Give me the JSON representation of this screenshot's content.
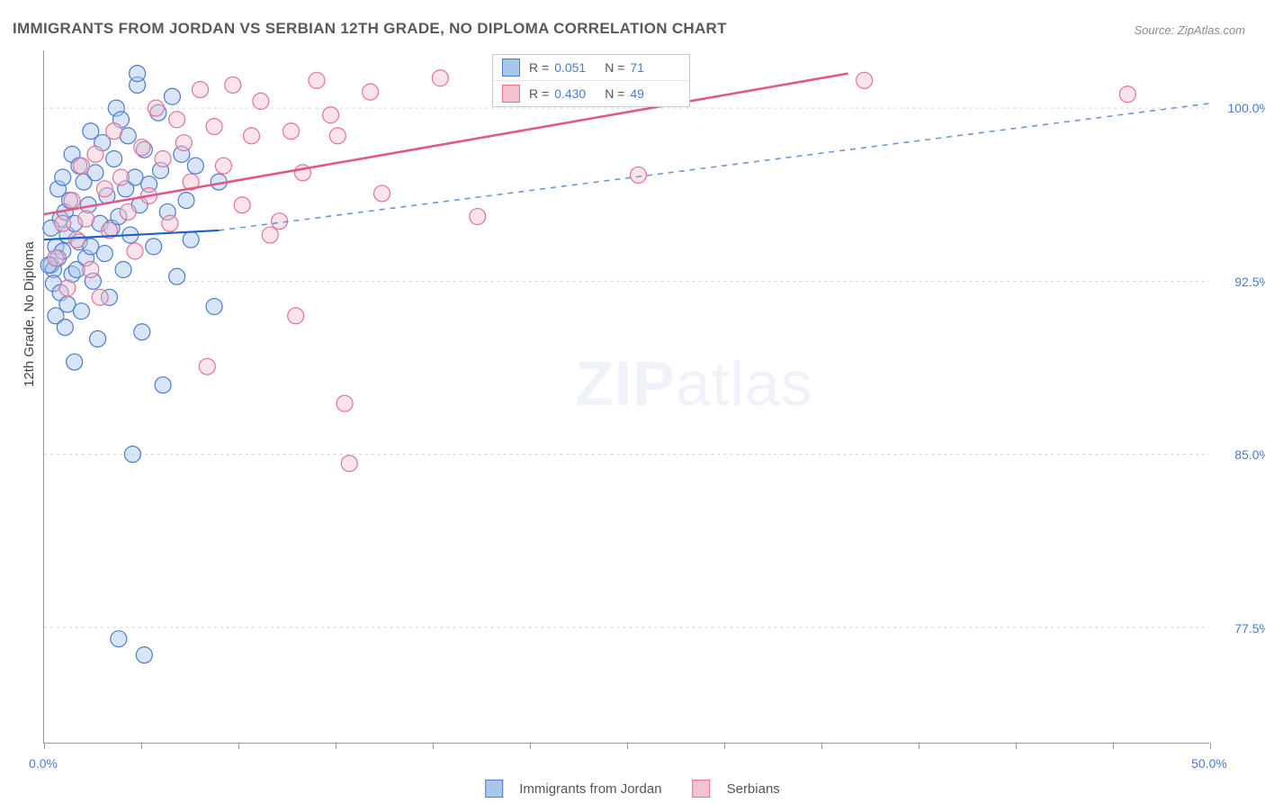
{
  "title": "IMMIGRANTS FROM JORDAN VS SERBIAN 12TH GRADE, NO DIPLOMA CORRELATION CHART",
  "source": "Source: ZipAtlas.com",
  "ylabel": "12th Grade, No Diploma",
  "watermark_bold": "ZIP",
  "watermark_rest": "atlas",
  "chart": {
    "type": "scatter",
    "background_color": "#ffffff",
    "grid_color": "#d0d0d0",
    "axis_color": "#999999",
    "tick_label_color": "#4a7bd0",
    "label_fontsize": 15,
    "tick_fontsize": 14,
    "title_fontsize": 17,
    "title_color": "#5a5a5a",
    "xlim": [
      0,
      50
    ],
    "ylim": [
      72.5,
      102.5
    ],
    "xticks": [
      0,
      4.17,
      8.33,
      12.5,
      16.67,
      20.83,
      25.0,
      29.17,
      33.33,
      37.5,
      41.67,
      45.83,
      50.0
    ],
    "xtick_labels": {
      "0": "0.0%",
      "50": "50.0%"
    },
    "yticks": [
      77.5,
      85.0,
      92.5,
      100.0
    ],
    "ytick_labels": [
      "77.5%",
      "85.0%",
      "92.5%",
      "100.0%"
    ],
    "marker_radius": 9,
    "marker_opacity": 0.45,
    "series": [
      {
        "name": "Immigrants from Jordan",
        "color_fill": "#a9c6ee",
        "color_stroke": "#4a7bd0",
        "R": "0.051",
        "N": "71",
        "trend": {
          "x1": 0,
          "y1": 94.3,
          "x2": 7.5,
          "y2": 94.7,
          "x2_ext": 50,
          "y2_ext": 100.2,
          "solid_color": "#1f5fc4",
          "dash_color": "#6b96dd",
          "line_width": 2.2
        },
        "points": [
          [
            0.3,
            93.2
          ],
          [
            0.4,
            93.0
          ],
          [
            0.4,
            92.4
          ],
          [
            0.5,
            94.0
          ],
          [
            0.5,
            91.0
          ],
          [
            0.6,
            96.5
          ],
          [
            0.6,
            93.5
          ],
          [
            0.7,
            95.2
          ],
          [
            0.7,
            92.0
          ],
          [
            0.8,
            97.0
          ],
          [
            0.8,
            93.8
          ],
          [
            0.9,
            95.5
          ],
          [
            0.9,
            90.5
          ],
          [
            1.0,
            94.5
          ],
          [
            1.0,
            91.5
          ],
          [
            1.1,
            96.0
          ],
          [
            1.2,
            92.8
          ],
          [
            1.2,
            98.0
          ],
          [
            1.3,
            95.0
          ],
          [
            1.3,
            89.0
          ],
          [
            1.4,
            93.0
          ],
          [
            1.5,
            97.5
          ],
          [
            1.5,
            94.2
          ],
          [
            1.6,
            91.2
          ],
          [
            1.7,
            96.8
          ],
          [
            1.8,
            93.5
          ],
          [
            1.9,
            95.8
          ],
          [
            2.0,
            94.0
          ],
          [
            2.0,
            99.0
          ],
          [
            2.1,
            92.5
          ],
          [
            2.2,
            97.2
          ],
          [
            2.3,
            90.0
          ],
          [
            2.4,
            95.0
          ],
          [
            2.5,
            98.5
          ],
          [
            2.6,
            93.7
          ],
          [
            2.7,
            96.2
          ],
          [
            2.8,
            91.8
          ],
          [
            2.9,
            94.8
          ],
          [
            3.0,
            97.8
          ],
          [
            3.1,
            100.0
          ],
          [
            3.2,
            95.3
          ],
          [
            3.3,
            99.5
          ],
          [
            3.4,
            93.0
          ],
          [
            3.5,
            96.5
          ],
          [
            3.6,
            98.8
          ],
          [
            3.7,
            94.5
          ],
          [
            3.8,
            85.0
          ],
          [
            3.9,
            97.0
          ],
          [
            4.0,
            101.0
          ],
          [
            4.1,
            95.8
          ],
          [
            4.2,
            90.3
          ],
          [
            4.3,
            98.2
          ],
          [
            4.5,
            96.7
          ],
          [
            4.7,
            94.0
          ],
          [
            4.9,
            99.8
          ],
          [
            5.0,
            97.3
          ],
          [
            5.1,
            88.0
          ],
          [
            5.3,
            95.5
          ],
          [
            5.5,
            100.5
          ],
          [
            5.7,
            92.7
          ],
          [
            5.9,
            98.0
          ],
          [
            6.1,
            96.0
          ],
          [
            6.3,
            94.3
          ],
          [
            6.5,
            97.5
          ],
          [
            3.2,
            77.0
          ],
          [
            4.3,
            76.3
          ],
          [
            4.0,
            101.5
          ],
          [
            7.3,
            91.4
          ],
          [
            7.5,
            96.8
          ],
          [
            0.2,
            93.2
          ],
          [
            0.3,
            94.8
          ]
        ]
      },
      {
        "name": "Serbians",
        "color_fill": "#f4c1cf",
        "color_stroke": "#e27396",
        "R": "0.430",
        "N": "49",
        "trend": {
          "x1": 0,
          "y1": 95.4,
          "x2": 34.5,
          "y2": 101.5,
          "solid_color": "#e05a86",
          "line_width": 2.6
        },
        "points": [
          [
            0.5,
            93.5
          ],
          [
            0.8,
            95.0
          ],
          [
            1.0,
            92.2
          ],
          [
            1.2,
            96.0
          ],
          [
            1.4,
            94.3
          ],
          [
            1.6,
            97.5
          ],
          [
            1.8,
            95.2
          ],
          [
            2.0,
            93.0
          ],
          [
            2.2,
            98.0
          ],
          [
            2.4,
            91.8
          ],
          [
            2.6,
            96.5
          ],
          [
            2.8,
            94.7
          ],
          [
            3.0,
            99.0
          ],
          [
            3.3,
            97.0
          ],
          [
            3.6,
            95.5
          ],
          [
            3.9,
            93.8
          ],
          [
            4.2,
            98.3
          ],
          [
            4.5,
            96.2
          ],
          [
            4.8,
            100.0
          ],
          [
            5.1,
            97.8
          ],
          [
            5.4,
            95.0
          ],
          [
            5.7,
            99.5
          ],
          [
            6.0,
            98.5
          ],
          [
            6.3,
            96.8
          ],
          [
            6.7,
            100.8
          ],
          [
            7.0,
            88.8
          ],
          [
            7.3,
            99.2
          ],
          [
            7.7,
            97.5
          ],
          [
            8.1,
            101.0
          ],
          [
            8.5,
            95.8
          ],
          [
            8.9,
            98.8
          ],
          [
            9.3,
            100.3
          ],
          [
            9.7,
            94.5
          ],
          [
            10.1,
            95.1
          ],
          [
            10.6,
            99.0
          ],
          [
            10.8,
            91.0
          ],
          [
            11.1,
            97.2
          ],
          [
            11.7,
            101.2
          ],
          [
            12.3,
            99.7
          ],
          [
            12.6,
            98.8
          ],
          [
            12.9,
            87.2
          ],
          [
            13.1,
            84.6
          ],
          [
            14.0,
            100.7
          ],
          [
            14.5,
            96.3
          ],
          [
            17.0,
            101.3
          ],
          [
            18.6,
            95.3
          ],
          [
            25.5,
            97.1
          ],
          [
            35.2,
            101.2
          ],
          [
            46.5,
            100.6
          ]
        ]
      }
    ]
  },
  "legend_top": {
    "R_label": "R =",
    "N_label": "N ="
  },
  "legend_bottom": {
    "items": [
      "Immigrants from Jordan",
      "Serbians"
    ]
  }
}
